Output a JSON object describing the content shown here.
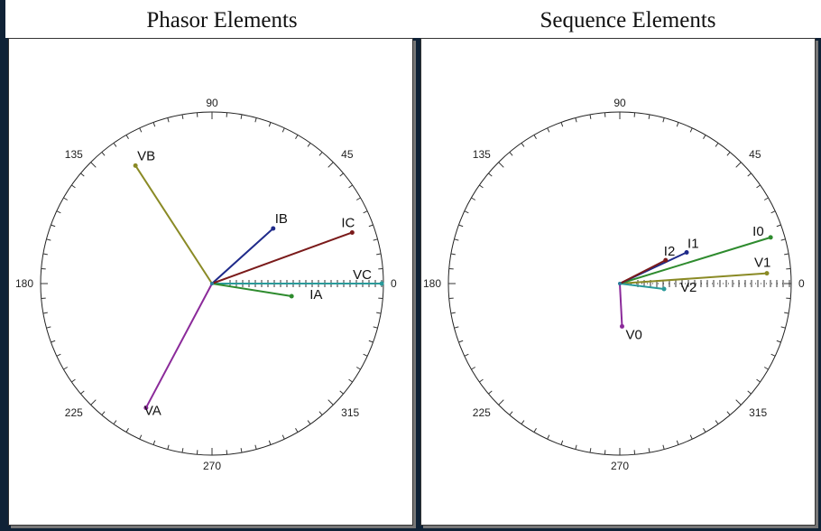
{
  "chart_data": [
    {
      "type": "polar-phasor",
      "title": "Phasor Elements",
      "angle_labels": [
        "90",
        "45",
        "0",
        "315",
        "270",
        "225",
        "180",
        "135"
      ],
      "phasors": [
        {
          "name": "VA",
          "angle_deg": 242,
          "magnitude": 0.82,
          "color": "#8b2a9a"
        },
        {
          "name": "VB",
          "angle_deg": 123,
          "magnitude": 0.82,
          "color": "#8a8a25"
        },
        {
          "name": "VC",
          "angle_deg": 0,
          "magnitude": 0.99,
          "color": "#2a9a9a"
        },
        {
          "name": "IA",
          "angle_deg": 351,
          "magnitude": 0.47,
          "color": "#2e8b2e"
        },
        {
          "name": "IB",
          "angle_deg": 42,
          "magnitude": 0.48,
          "color": "#1f2a8a"
        },
        {
          "name": "IC",
          "angle_deg": 20,
          "magnitude": 0.87,
          "color": "#7a1a1a"
        }
      ]
    },
    {
      "type": "polar-phasor",
      "title": "Sequence Elements",
      "angle_labels": [
        "90",
        "45",
        "0",
        "315",
        "270",
        "225",
        "180",
        "135"
      ],
      "phasors": [
        {
          "name": "V0",
          "angle_deg": 273,
          "magnitude": 0.25,
          "color": "#8b2a9a"
        },
        {
          "name": "V1",
          "angle_deg": 4,
          "magnitude": 0.86,
          "color": "#8a8a25"
        },
        {
          "name": "V2",
          "angle_deg": 353,
          "magnitude": 0.26,
          "color": "#2a9a9a"
        },
        {
          "name": "I0",
          "angle_deg": 17,
          "magnitude": 0.92,
          "color": "#2e8b2e"
        },
        {
          "name": "I1",
          "angle_deg": 25,
          "magnitude": 0.43,
          "color": "#1f2a8a"
        },
        {
          "name": "I2",
          "angle_deg": 27,
          "magnitude": 0.3,
          "color": "#7a1a1a"
        }
      ]
    }
  ]
}
